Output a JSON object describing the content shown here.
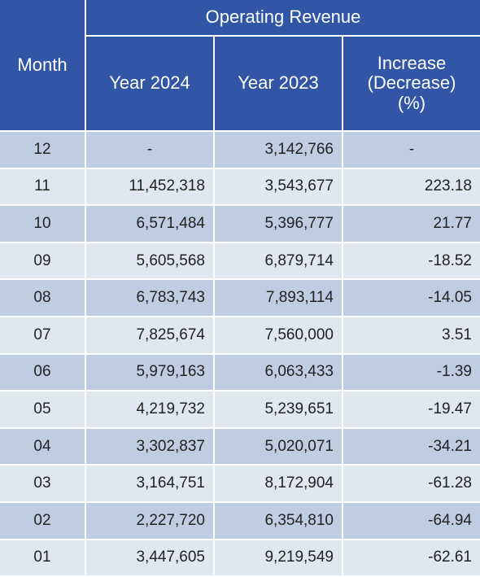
{
  "header": {
    "month": "Month",
    "group": "Operating Revenue",
    "columns": [
      "Year 2024",
      "Year 2023",
      "Increase\n(Decrease)\n(%)"
    ]
  },
  "rows": [
    [
      "12",
      "-",
      "3,142,766",
      "-"
    ],
    [
      "11",
      "11,452,318",
      "3,543,677",
      "223.18"
    ],
    [
      "10",
      "6,571,484",
      "5,396,777",
      "21.77"
    ],
    [
      "09",
      "5,605,568",
      "6,879,714",
      "-18.52"
    ],
    [
      "08",
      "6,783,743",
      "7,893,114",
      "-14.05"
    ],
    [
      "07",
      "7,825,674",
      "7,560,000",
      "3.51"
    ],
    [
      "06",
      "5,979,163",
      "6,063,433",
      "-1.39"
    ],
    [
      "05",
      "4,219,732",
      "5,239,651",
      "-19.47"
    ],
    [
      "04",
      "3,302,837",
      "5,020,071",
      "-34.21"
    ],
    [
      "03",
      "3,164,751",
      "8,172,904",
      "-61.28"
    ],
    [
      "02",
      "2,227,720",
      "6,354,810",
      "-64.94"
    ],
    [
      "01",
      "3,447,605",
      "9,219,549",
      "-62.61"
    ]
  ]
}
